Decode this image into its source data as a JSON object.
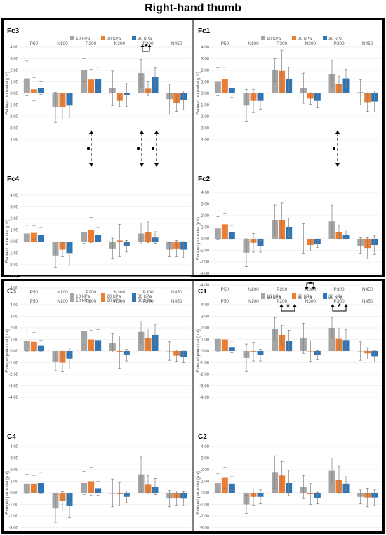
{
  "title": "Right-hand thumb",
  "legend": [
    {
      "label": "10 kPa",
      "color": "#a5a5a5"
    },
    {
      "label": "20 kPa",
      "color": "#ed7d31"
    },
    {
      "label": "30 kPa",
      "color": "#2e75b6"
    }
  ],
  "chart_data": [
    {
      "type": "bar",
      "title": "Fc3",
      "ylabel": "Evoked potential [µV]",
      "ylim": [
        -4,
        4
      ],
      "categories": [
        "P50",
        "N100",
        "P200",
        "N300",
        "P300",
        "N450"
      ],
      "series": [
        {
          "name": "10 kPa",
          "values": [
            1.3,
            -1.2,
            2.0,
            0.45,
            1.75,
            -0.5
          ],
          "errors": [
            1.5,
            1.3,
            1.0,
            1.5,
            1.2,
            1.3
          ]
        },
        {
          "name": "20 kPa",
          "values": [
            0.35,
            -1.2,
            1.2,
            -0.65,
            0.4,
            -0.85
          ],
          "errors": [
            1.0,
            1.0,
            0.9,
            0.5,
            0.6,
            0.7
          ]
        },
        {
          "name": "30 kPa",
          "values": [
            0.45,
            -1.05,
            1.25,
            -0.15,
            1.4,
            -0.6
          ],
          "errors": [
            0.55,
            1.0,
            1.0,
            1.0,
            0.8,
            0.8
          ]
        }
      ]
    },
    {
      "type": "bar",
      "title": "Fc1",
      "ylabel": "Evoked potential [µV]",
      "ylim": [
        -4,
        4
      ],
      "categories": [
        "P50",
        "N100",
        "P200",
        "N300",
        "P300",
        "N450"
      ],
      "series": [
        {
          "name": "10 kPa",
          "values": [
            1.0,
            -1.05,
            2.0,
            0.45,
            1.65,
            0.1
          ],
          "errors": [
            1.2,
            1.4,
            1.0,
            1.3,
            1.2,
            1.1
          ]
        },
        {
          "name": "20 kPa",
          "values": [
            1.25,
            -0.65,
            1.95,
            -0.45,
            0.8,
            -0.75
          ],
          "errors": [
            1.0,
            1.0,
            1.8,
            0.5,
            0.7,
            0.8
          ]
        },
        {
          "name": "30 kPa",
          "values": [
            0.45,
            -0.65,
            1.25,
            -0.65,
            1.3,
            -0.7
          ],
          "errors": [
            0.8,
            0.7,
            1.0,
            0.6,
            0.8,
            0.9
          ]
        }
      ]
    },
    {
      "type": "bar",
      "title": "Fc4",
      "ylabel": "Evoked potential [µV]",
      "ylim": [
        -4,
        4
      ],
      "categories": [
        "P50",
        "N100",
        "P200",
        "N300",
        "P300",
        "N450"
      ],
      "series": [
        {
          "name": "10 kPa",
          "values": [
            0.7,
            -1.2,
            0.85,
            -0.6,
            0.7,
            -0.7
          ],
          "errors": [
            0.7,
            1.0,
            1.0,
            0.9,
            0.9,
            0.6
          ]
        },
        {
          "name": "20 kPa",
          "values": [
            0.75,
            -0.7,
            1.0,
            0.1,
            0.8,
            -0.6
          ],
          "errors": [
            0.6,
            0.6,
            1.1,
            1.4,
            0.9,
            0.7
          ]
        },
        {
          "name": "30 kPa",
          "values": [
            0.6,
            -1.05,
            0.6,
            -0.4,
            0.35,
            -0.7
          ],
          "errors": [
            0.6,
            1.0,
            0.6,
            0.5,
            0.5,
            0.7
          ]
        }
      ]
    },
    {
      "type": "bar",
      "title": "Fc2",
      "ylabel": "Evoked potential [µV]",
      "ylim": [
        -4,
        4
      ],
      "categories": [
        "P50",
        "N100",
        "P200",
        "N300",
        "P300",
        "N450"
      ],
      "series": [
        {
          "name": "10 kPa",
          "values": [
            0.9,
            -1.2,
            1.6,
            0.0,
            1.5,
            -0.6
          ],
          "errors": [
            1.0,
            1.2,
            1.3,
            1.3,
            1.4,
            0.7
          ]
        },
        {
          "name": "20 kPa",
          "values": [
            1.25,
            -0.35,
            1.6,
            -0.55,
            0.55,
            -0.8
          ],
          "errors": [
            0.9,
            0.8,
            1.5,
            0.5,
            0.6,
            0.9
          ]
        },
        {
          "name": "30 kPa",
          "values": [
            0.55,
            -0.65,
            1.0,
            -0.45,
            0.35,
            -0.55
          ],
          "errors": [
            0.6,
            0.5,
            0.8,
            0.3,
            0.4,
            0.8
          ]
        }
      ]
    },
    {
      "type": "bar",
      "title": "C3",
      "ylabel": "Evoked potential [µV]",
      "ylim": [
        -4,
        4
      ],
      "categories": [
        "P50",
        "N100",
        "P200",
        "N300",
        "P300",
        "N450"
      ],
      "series": [
        {
          "name": "10 kPa",
          "values": [
            0.85,
            -0.9,
            1.75,
            0.7,
            1.65,
            0.0
          ],
          "errors": [
            0.9,
            0.8,
            1.2,
            0.8,
            0.9,
            0.8
          ]
        },
        {
          "name": "20 kPa",
          "values": [
            0.8,
            -1.0,
            1.0,
            -0.1,
            1.1,
            -0.4
          ],
          "errors": [
            0.8,
            0.8,
            0.8,
            1.4,
            0.8,
            0.5
          ]
        },
        {
          "name": "30 kPa",
          "values": [
            0.45,
            -0.65,
            0.95,
            -0.35,
            1.4,
            -0.5
          ],
          "errors": [
            0.5,
            0.9,
            0.9,
            0.5,
            0.9,
            0.5
          ]
        }
      ]
    },
    {
      "type": "bar",
      "title": "C1",
      "ylabel": "Evoked potential [µV]",
      "ylim": [
        -4,
        4
      ],
      "categories": [
        "P50",
        "N100",
        "P200",
        "N300",
        "P300",
        "N450"
      ],
      "series": [
        {
          "name": "10 kPa",
          "values": [
            1.05,
            -0.6,
            1.9,
            1.1,
            2.0,
            0.0
          ],
          "errors": [
            1.1,
            1.2,
            1.0,
            1.3,
            0.9,
            0.8
          ]
        },
        {
          "name": "20 kPa",
          "values": [
            1.0,
            -0.05,
            1.4,
            0.0,
            1.05,
            -0.2
          ],
          "errors": [
            0.9,
            0.8,
            0.8,
            0.9,
            0.9,
            0.5
          ]
        },
        {
          "name": "30 kPa",
          "values": [
            0.35,
            -0.35,
            0.9,
            -0.35,
            0.95,
            -0.45
          ],
          "errors": [
            0.5,
            0.5,
            0.9,
            0.4,
            0.9,
            0.5
          ]
        }
      ]
    },
    {
      "type": "bar",
      "title": "C4",
      "ylabel": "Evoked potential [µV]",
      "ylim": [
        -4,
        4
      ],
      "categories": [
        "P50",
        "N100",
        "P200",
        "N300",
        "P300",
        "N450"
      ],
      "series": [
        {
          "name": "10 kPa",
          "values": [
            0.8,
            -1.35,
            0.85,
            0.0,
            1.6,
            -0.5
          ],
          "errors": [
            0.8,
            1.2,
            1.0,
            1.2,
            1.5,
            0.7
          ]
        },
        {
          "name": "20 kPa",
          "values": [
            0.8,
            -0.7,
            1.0,
            -0.1,
            0.7,
            -0.45
          ],
          "errors": [
            0.7,
            0.8,
            1.2,
            1.0,
            0.8,
            0.6
          ]
        },
        {
          "name": "30 kPa",
          "values": [
            0.85,
            -1.15,
            0.4,
            -0.35,
            0.55,
            -0.5
          ],
          "errors": [
            0.9,
            1.0,
            0.6,
            0.5,
            0.7,
            0.6
          ]
        }
      ]
    },
    {
      "type": "bar",
      "title": "C2",
      "ylabel": "Evoked potential [µV]",
      "ylim": [
        -4,
        4
      ],
      "categories": [
        "P50",
        "N100",
        "P200",
        "N300",
        "P300",
        "N450"
      ],
      "series": [
        {
          "name": "10 kPa",
          "values": [
            0.85,
            -1.0,
            1.8,
            0.5,
            1.9,
            -0.35
          ],
          "errors": [
            0.8,
            0.8,
            1.4,
            1.0,
            1.1,
            0.6
          ]
        },
        {
          "name": "20 kPa",
          "values": [
            1.3,
            -0.35,
            1.5,
            -0.1,
            1.1,
            -0.4
          ],
          "errors": [
            0.9,
            0.7,
            1.2,
            0.9,
            1.2,
            0.8
          ]
        },
        {
          "name": "30 kPa",
          "values": [
            0.8,
            -0.35,
            0.85,
            -0.45,
            0.8,
            -0.4
          ],
          "errors": [
            0.6,
            0.6,
            1.1,
            0.5,
            0.6,
            0.7
          ]
        }
      ]
    }
  ],
  "tick_labels": [
    "4.00",
    "3.00",
    "2.00",
    "1.00",
    "0.00",
    "-1.00",
    "-2.00",
    "-3.00",
    "-4.00"
  ],
  "significance_marker": "*"
}
